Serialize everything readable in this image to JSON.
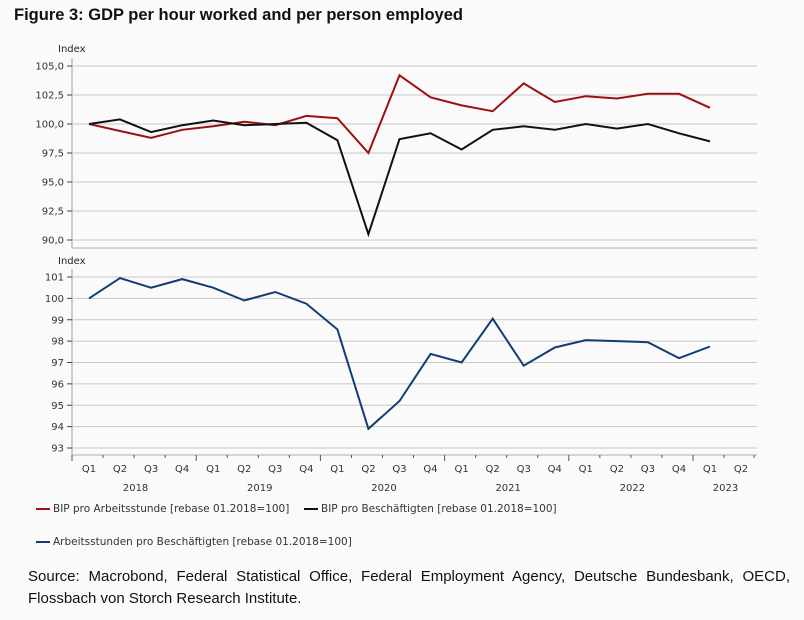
{
  "figure": {
    "title": "Figure 3: GDP per hour worked and per person employed",
    "source": "Source: Macrobond, Federal Statistical Office, Federal Employment Agency, Deutsche Bundesbank, OECD, Flossbach von Storch Research Institute."
  },
  "colors": {
    "red": "#9b1111",
    "black": "#111111",
    "blue": "#123d72",
    "grid": "#c8c8c8",
    "axis": "#bdbdbd"
  },
  "legend": [
    {
      "label": "BIP pro Arbeitsstunde [rebase 01.2018=100]",
      "color": "#9b1111"
    },
    {
      "label": "BIP pro Beschäftigten [rebase 01.2018=100]",
      "color": "#111111"
    },
    {
      "label": "Arbeitsstunden pro Beschäftigten [rebase 01.2018=100]",
      "color": "#123d72"
    }
  ],
  "chart_data": [
    {
      "type": "line",
      "title": "GDP per hour worked and per person employed",
      "ylabel": "Index",
      "ylim": [
        90,
        105
      ],
      "yticks": [
        "105,0",
        "102,5",
        "100,0",
        "97,5",
        "95,0",
        "92,5",
        "90,0"
      ],
      "ytick_values": [
        105,
        102.5,
        100,
        97.5,
        95,
        92.5,
        90
      ],
      "grid": true,
      "x": [
        "Q1 2018",
        "Q2 2018",
        "Q3 2018",
        "Q4 2018",
        "Q1 2019",
        "Q2 2019",
        "Q3 2019",
        "Q4 2019",
        "Q1 2020",
        "Q2 2020",
        "Q3 2020",
        "Q4 2020",
        "Q1 2021",
        "Q2 2021",
        "Q3 2021",
        "Q4 2021",
        "Q1 2022",
        "Q2 2022",
        "Q3 2022",
        "Q4 2022",
        "Q1 2023"
      ],
      "series": [
        {
          "name": "BIP pro Arbeitsstunde [rebase 01.2018=100]",
          "color": "#9b1111",
          "values": [
            100.0,
            99.4,
            98.8,
            99.5,
            99.8,
            100.2,
            99.9,
            100.7,
            100.5,
            97.5,
            104.2,
            102.3,
            101.6,
            101.1,
            103.5,
            101.9,
            102.4,
            102.2,
            102.6,
            102.6,
            101.4
          ]
        },
        {
          "name": "BIP pro Beschäftigten [rebase 01.2018=100]",
          "color": "#111111",
          "values": [
            100.0,
            100.4,
            99.3,
            99.9,
            100.3,
            99.9,
            100.0,
            100.1,
            98.6,
            90.5,
            98.7,
            99.2,
            97.8,
            99.5,
            99.8,
            99.5,
            100.0,
            99.6,
            100.0,
            99.2,
            98.5
          ]
        }
      ]
    },
    {
      "type": "line",
      "ylabel": "Index",
      "ylim": [
        93,
        101
      ],
      "yticks": [
        "101",
        "100",
        "99",
        "98",
        "97",
        "96",
        "95",
        "94",
        "93"
      ],
      "ytick_values": [
        101,
        100,
        99,
        98,
        97,
        96,
        95,
        94,
        93
      ],
      "grid": true,
      "x": [
        "Q1 2018",
        "Q2 2018",
        "Q3 2018",
        "Q4 2018",
        "Q1 2019",
        "Q2 2019",
        "Q3 2019",
        "Q4 2019",
        "Q1 2020",
        "Q2 2020",
        "Q3 2020",
        "Q4 2020",
        "Q1 2021",
        "Q2 2021",
        "Q3 2021",
        "Q4 2021",
        "Q1 2022",
        "Q2 2022",
        "Q3 2022",
        "Q4 2022",
        "Q1 2023"
      ],
      "series": [
        {
          "name": "Arbeitsstunden pro Beschäftigten [rebase 01.2018=100]",
          "color": "#123d72",
          "values": [
            100.0,
            100.95,
            100.5,
            100.9,
            100.5,
            99.9,
            100.3,
            99.75,
            98.55,
            93.9,
            95.2,
            97.4,
            97.0,
            99.05,
            96.85,
            97.7,
            98.05,
            98.0,
            97.95,
            97.2,
            97.75
          ]
        }
      ]
    }
  ],
  "xaxis": {
    "quarter_labels": [
      "Q1",
      "Q2",
      "Q3",
      "Q4",
      "Q1",
      "Q2",
      "Q3",
      "Q4",
      "Q1",
      "Q2",
      "Q3",
      "Q4",
      "Q1",
      "Q2",
      "Q3",
      "Q4",
      "Q1",
      "Q2",
      "Q3",
      "Q4",
      "Q1",
      "Q2"
    ],
    "years": [
      "2018",
      "2019",
      "2020",
      "2021",
      "2022",
      "2023"
    ]
  }
}
